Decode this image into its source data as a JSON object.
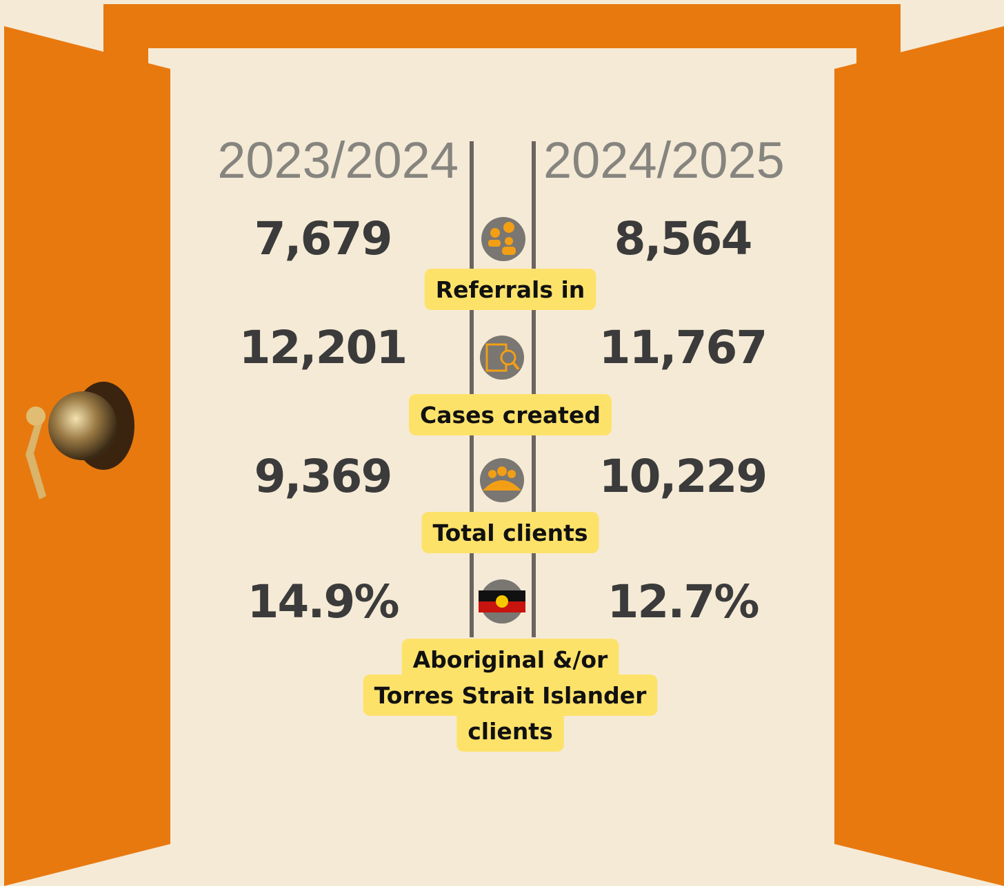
{
  "columns": [
    "2023/2024",
    "2024/2025"
  ],
  "rows": [
    {
      "label": [
        "Referrals in"
      ],
      "values": [
        "7,679",
        "8,564"
      ]
    },
    {
      "label": [
        "Cases created"
      ],
      "values": [
        "12,201",
        "11,767"
      ]
    },
    {
      "label": [
        "Total clients"
      ],
      "values": [
        "9,369",
        "10,229"
      ]
    },
    {
      "label": [
        "Aboriginal &/or",
        "Torres Strait Islander",
        "clients"
      ],
      "values": [
        "14.9%",
        "12.7%"
      ]
    }
  ]
}
